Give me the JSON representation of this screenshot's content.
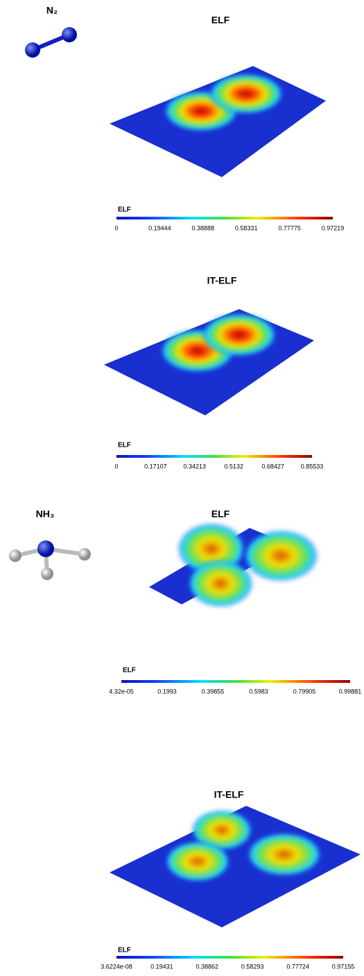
{
  "figure": {
    "molecules": [
      {
        "label": "N₂"
      },
      {
        "label": "NH₃"
      }
    ],
    "panels": [
      {
        "title": "ELF",
        "colorbar": {
          "label": "ELF",
          "ticks": [
            "0",
            "0.19444",
            "0.38888",
            "0.58331",
            "0.77775",
            "0.97219"
          ]
        }
      },
      {
        "title": "IT-ELF",
        "colorbar": {
          "label": "ELF",
          "ticks": [
            "0",
            "0.17107",
            "0.34213",
            "0.5132",
            "0.68427",
            "0.85533"
          ]
        }
      },
      {
        "title": "ELF",
        "colorbar": {
          "label": "ELF",
          "ticks": [
            "4.32e-05",
            "0.1993",
            "0.39855",
            "0.5983",
            "0.79905",
            "0.99881"
          ]
        }
      },
      {
        "title": "IT-ELF",
        "colorbar": {
          "label": "ELF",
          "ticks": [
            "3.6224e-08",
            "0.19431",
            "0.38862",
            "0.58293",
            "0.77724",
            "0.97155"
          ]
        }
      }
    ]
  }
}
